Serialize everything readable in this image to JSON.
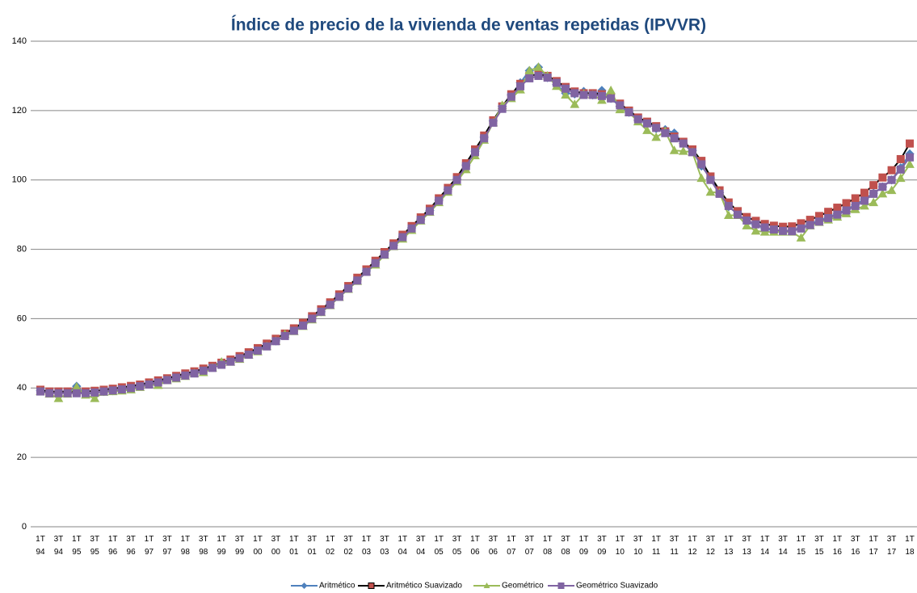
{
  "chart_data": {
    "type": "line",
    "title": "Índice de precio de la vivienda de ventas repetidas (IPVVR)",
    "categories": [
      "1T 94",
      null,
      "3T 94",
      null,
      "1T 95",
      null,
      "3T 95",
      null,
      "1T 96",
      null,
      "3T 96",
      null,
      "1T 97",
      null,
      "3T 97",
      null,
      "1T 98",
      null,
      "3T 98",
      null,
      "1T 99",
      null,
      "3T 99",
      null,
      "1T 00",
      null,
      "3T 00",
      null,
      "1T 01",
      null,
      "3T 01",
      null,
      "1T 02",
      null,
      "3T 02",
      null,
      "1T 03",
      null,
      "3T 03",
      null,
      "1T 04",
      null,
      "3T 04",
      null,
      "1T 05",
      null,
      "3T 05",
      null,
      "1T 06",
      null,
      "3T 06",
      null,
      "1T 07",
      null,
      "3T 07",
      null,
      "1T 08",
      null,
      "3T 08",
      null,
      "1T 09",
      null,
      "3T 09",
      null,
      "1T 10",
      null,
      "3T 10",
      null,
      "1T 11",
      null,
      "3T 11",
      null,
      "1T 12",
      null,
      "3T 12",
      null,
      "1T 13",
      null,
      "3T 13",
      null,
      "1T 14",
      null,
      "3T 14",
      null,
      "1T 15",
      null,
      "3T 15",
      null,
      "1T 16",
      null,
      "3T 16",
      null,
      "1T 17",
      null,
      "3T 17",
      null,
      "1T 18"
    ],
    "series": [
      {
        "name": "Aritmético",
        "color": "#4f81bd",
        "line_color": "#4f81bd",
        "marker": "diamond",
        "values": [
          39.2,
          38.8,
          38.6,
          38.8,
          40.5,
          38.3,
          38.6,
          39,
          39.2,
          39.5,
          40,
          40.6,
          41.2,
          41.5,
          42.6,
          43.2,
          43.7,
          44.4,
          45.2,
          46.2,
          47.2,
          47.8,
          48.8,
          49.8,
          51,
          52.3,
          53.6,
          55.3,
          56.8,
          58.3,
          60,
          62,
          64.2,
          66.5,
          68.8,
          71.3,
          73.8,
          76.2,
          78.7,
          81.2,
          83.7,
          86.2,
          88.7,
          91.2,
          94.2,
          97.3,
          100.2,
          104.3,
          108.3,
          112.3,
          117,
          121.2,
          124.5,
          128,
          131.5,
          132.5,
          129.5,
          127.5,
          125,
          124.8,
          125.5,
          124.5,
          125.8,
          123.5,
          121.2,
          119.5,
          117.2,
          116.5,
          114.8,
          114.5,
          113.5,
          110.5,
          108.5,
          104,
          100.5,
          96.3,
          92.3,
          90.2,
          88,
          87,
          86,
          85.5,
          85.3,
          85.5,
          86.2,
          87.3,
          88.3,
          89.2,
          90.3,
          91.5,
          92.8,
          94.5,
          96.2,
          98,
          100,
          103.5,
          107.5
        ]
      },
      {
        "name": "Aritmético Suavizado",
        "color": "#c0504d",
        "line_color": "#000000",
        "marker": "square",
        "values": [
          39.5,
          39,
          39,
          39,
          39,
          39,
          39.2,
          39.5,
          39.8,
          40.2,
          40.6,
          41,
          41.6,
          42.2,
          42.8,
          43.5,
          44.2,
          44.8,
          45.6,
          46.4,
          47.3,
          48.2,
          49.2,
          50.3,
          51.5,
          52.8,
          54.2,
          55.7,
          57.2,
          58.8,
          60.7,
          62.7,
          64.7,
          67,
          69.4,
          71.8,
          74.2,
          76.7,
          79.2,
          81.7,
          84.2,
          86.7,
          89.2,
          91.7,
          94.7,
          97.7,
          100.8,
          104.8,
          108.8,
          112.8,
          117.2,
          121.2,
          124.7,
          127.7,
          130,
          130.5,
          130,
          128.5,
          126.8,
          125.5,
          125,
          125,
          124.7,
          124,
          122,
          120,
          118,
          116.8,
          115.5,
          114,
          112.5,
          111,
          108.8,
          105.5,
          101,
          97,
          93.5,
          91,
          89.3,
          88.2,
          87.3,
          86.8,
          86.5,
          86.6,
          87.5,
          88.5,
          89.6,
          90.8,
          92,
          93.3,
          94.7,
          96.3,
          98.5,
          100.7,
          102.8,
          106,
          110.5
        ]
      },
      {
        "name": "Geométrico",
        "color": "#9bbb59",
        "line_color": "#9bbb59",
        "marker": "triangle",
        "values": [
          39,
          38.3,
          37,
          38.3,
          40.3,
          38,
          37,
          38.8,
          39,
          39.2,
          39.5,
          40.2,
          41,
          40.8,
          42.2,
          42.7,
          43.4,
          44.2,
          44.5,
          45.8,
          47.5,
          47.5,
          48.3,
          49.5,
          50.5,
          52,
          53.5,
          55.5,
          56.3,
          57.8,
          59.7,
          61.8,
          63.8,
          66.2,
          68.5,
          70.8,
          73.5,
          75.5,
          78.3,
          80.8,
          83,
          85.5,
          88.2,
          90.7,
          93.5,
          96.5,
          99.5,
          103,
          107,
          111.5,
          116.5,
          121.5,
          123.5,
          126,
          131.5,
          132.5,
          130,
          127,
          124.5,
          121.8,
          124.8,
          124.5,
          123,
          125.8,
          120.3,
          119.5,
          116.8,
          114.3,
          112.3,
          114,
          108.5,
          108.3,
          108,
          100.5,
          96.5,
          96.3,
          89.8,
          89.8,
          86.8,
          85.3,
          85,
          85,
          85,
          85,
          83.3,
          86.8,
          87.8,
          88.5,
          89.3,
          90.3,
          91.5,
          92.5,
          93.5,
          96,
          97,
          100.5,
          104.5
        ]
      },
      {
        "name": "Geométrico Suavizado",
        "color": "#8064a2",
        "line_color": "#8064a2",
        "marker": "square",
        "values": [
          39,
          38.5,
          38.5,
          38.5,
          38.5,
          38.5,
          38.7,
          39,
          39.3,
          39.6,
          40,
          40.5,
          41,
          41.6,
          42.3,
          43,
          43.6,
          44.2,
          45,
          45.8,
          46.7,
          47.6,
          48.6,
          49.6,
          50.8,
          52,
          53.5,
          55,
          56.5,
          58,
          60,
          62,
          64,
          66.3,
          68.7,
          71,
          73.5,
          76,
          78.5,
          81,
          83.5,
          86,
          88.5,
          91,
          94,
          97,
          100,
          104,
          108,
          112,
          116.5,
          120.5,
          124,
          127,
          129.3,
          130,
          129.5,
          128,
          126.3,
          125,
          124.5,
          124.5,
          124.2,
          123.5,
          121.5,
          119.5,
          117.5,
          116.3,
          115,
          113.5,
          112,
          110.5,
          108,
          104.5,
          100,
          96,
          92.5,
          90,
          88.3,
          87.2,
          86.3,
          85.7,
          85.3,
          85.2,
          86,
          87,
          88,
          89,
          90,
          91.2,
          92.5,
          94,
          96,
          98,
          100,
          103,
          106.5
        ]
      }
    ],
    "ylim": [
      0,
      140
    ],
    "yticks": [
      0,
      20,
      40,
      60,
      80,
      100,
      120,
      140
    ],
    "grid": true,
    "legend": "bottom"
  }
}
